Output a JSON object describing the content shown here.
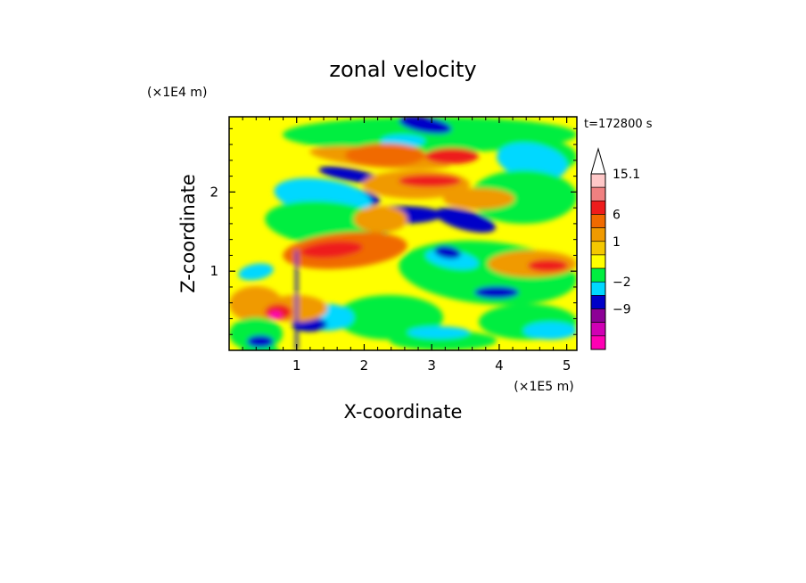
{
  "chart_data": {
    "type": "heatmap",
    "title": "zonal velocity",
    "xlabel": "X-coordinate",
    "ylabel": "Z-coordinate",
    "x_unit": "(×1E5 m)",
    "y_unit": "(×1E4 m)",
    "time_label": "t=172800 s",
    "xlim": [
      0,
      5.15
    ],
    "ylim": [
      0,
      2.95
    ],
    "x_ticks": [
      1,
      2,
      3,
      4,
      5
    ],
    "y_ticks": [
      1,
      2
    ],
    "colorbar": {
      "levels_top_to_bottom": [
        "#ffc8c8",
        "#f08080",
        "#ee1c1c",
        "#f06a00",
        "#f09a00",
        "#f4c800",
        "#ffff00",
        "#00ee40",
        "#00d8ff",
        "#0000c8",
        "#8c0096",
        "#d000b4",
        "#ff00b4"
      ],
      "tick_labels": [
        "15.1",
        "6",
        "1",
        "−2",
        "−9"
      ],
      "tick_level_index": [
        0,
        3,
        5,
        8,
        10
      ],
      "extend": "max"
    }
  }
}
